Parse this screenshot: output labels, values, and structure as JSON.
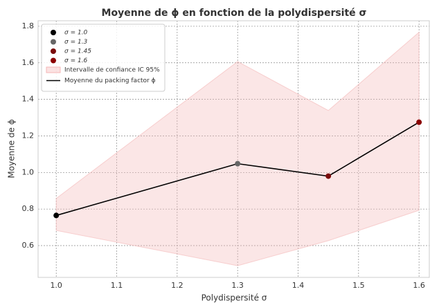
{
  "chart_data": {
    "type": "line",
    "title": "Moyenne de ϕ en fonction de la polydispersité σ",
    "xlabel": "Polydispersité σ",
    "ylabel": "Moyenne de ϕ",
    "x": [
      1.0,
      1.3,
      1.45,
      1.6
    ],
    "series": [
      {
        "name": "Moyenne du packing factor ϕ",
        "color": "#000000",
        "values": [
          0.765,
          1.048,
          0.98,
          1.275
        ]
      }
    ],
    "band": {
      "name": "Intervalle de confiance IC 95%",
      "color": "#f4b6b6",
      "lower": [
        0.683,
        0.49,
        0.627,
        0.793
      ],
      "upper": [
        0.858,
        1.607,
        1.339,
        1.767
      ]
    },
    "markers": [
      {
        "name": "σ = 1.0",
        "color": "#000000"
      },
      {
        "name": "σ = 1.3",
        "color": "#666666"
      },
      {
        "name": "σ = 1.45",
        "color": "#7a0a0a"
      },
      {
        "name": "σ = 1.6",
        "color": "#8b0000"
      }
    ],
    "xlim": [
      0.97,
      1.617
    ],
    "ylim": [
      0.426,
      1.83
    ],
    "xticks": [
      {
        "value": 1,
        "label": "1.0"
      },
      1.1,
      1.2,
      1.3,
      1.4,
      1.5,
      1.6
    ],
    "yticks": [
      0.6,
      0.8,
      {
        "value": 1,
        "label": "1.0"
      },
      1.2,
      1.4,
      1.6,
      1.8
    ],
    "grid": true,
    "legend": "upper left"
  }
}
